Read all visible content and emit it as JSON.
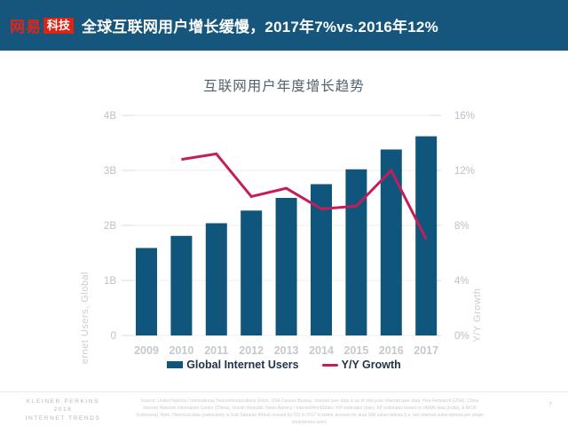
{
  "colors": {
    "header_bg": "#16567D",
    "logo_red": "#DD2413",
    "bar_teal": "#10567C",
    "line_crimson": "#C41D5B",
    "axis_gray": "#BCC1C8"
  },
  "header": {
    "logo_brand": "网易",
    "logo_sub": "科技",
    "title": "全球互联网用户增长缓慢，2017年7%vs.2016年12%"
  },
  "chart_data": {
    "type": "bar",
    "title": "互联网用户年度增长趋势",
    "categories": [
      "2009",
      "2010",
      "2011",
      "2012",
      "2013",
      "2014",
      "2015",
      "2016",
      "2017"
    ],
    "series": [
      {
        "name": "Global Internet Users",
        "type": "bar",
        "axis": "left",
        "color": "#10567C",
        "values": [
          1.59,
          1.81,
          2.04,
          2.27,
          2.5,
          2.75,
          3.02,
          3.38,
          3.62
        ]
      },
      {
        "name": "Y/Y Growth",
        "type": "line",
        "axis": "right",
        "color": "#C41D5B",
        "values": [
          null,
          12.8,
          13.2,
          10.1,
          10.7,
          9.2,
          9.4,
          12,
          7
        ]
      }
    ],
    "left_axis": {
      "label": "Internet Users, Global",
      "ticks": [
        "0",
        "1B",
        "2B",
        "3B",
        "4B"
      ],
      "min": 0,
      "max": 4
    },
    "right_axis": {
      "label": "Y/Y Growth",
      "ticks": [
        "0%",
        "4%",
        "8%",
        "12%",
        "16%"
      ],
      "min": 0,
      "max": 16
    },
    "grid": true,
    "legend_position": "bottom"
  },
  "footer": {
    "brand_lines": [
      "KLEINER PERKINS",
      "2018",
      "INTERNET TRENDS"
    ],
    "source": "Source: United Nations / International Telecommunications Union, USA Census Bureau. Internet user data is as of mid-year. Internet user data: Pew Research (USA), China Internet Network Information Center (China), Islamic Republic News Agency / InternetWorldStats / KP estimates (Iran). KP estimates based on IAMAI data (India), & APJII (Indonesia). Note: Historical data (particularly in Sub-Saharan Africa) revised by ITU in 2017 to better account for dual-SIM subscriptions (i.e. two Internet subscriptions per single smartphone user).",
    "page_number": "7"
  }
}
